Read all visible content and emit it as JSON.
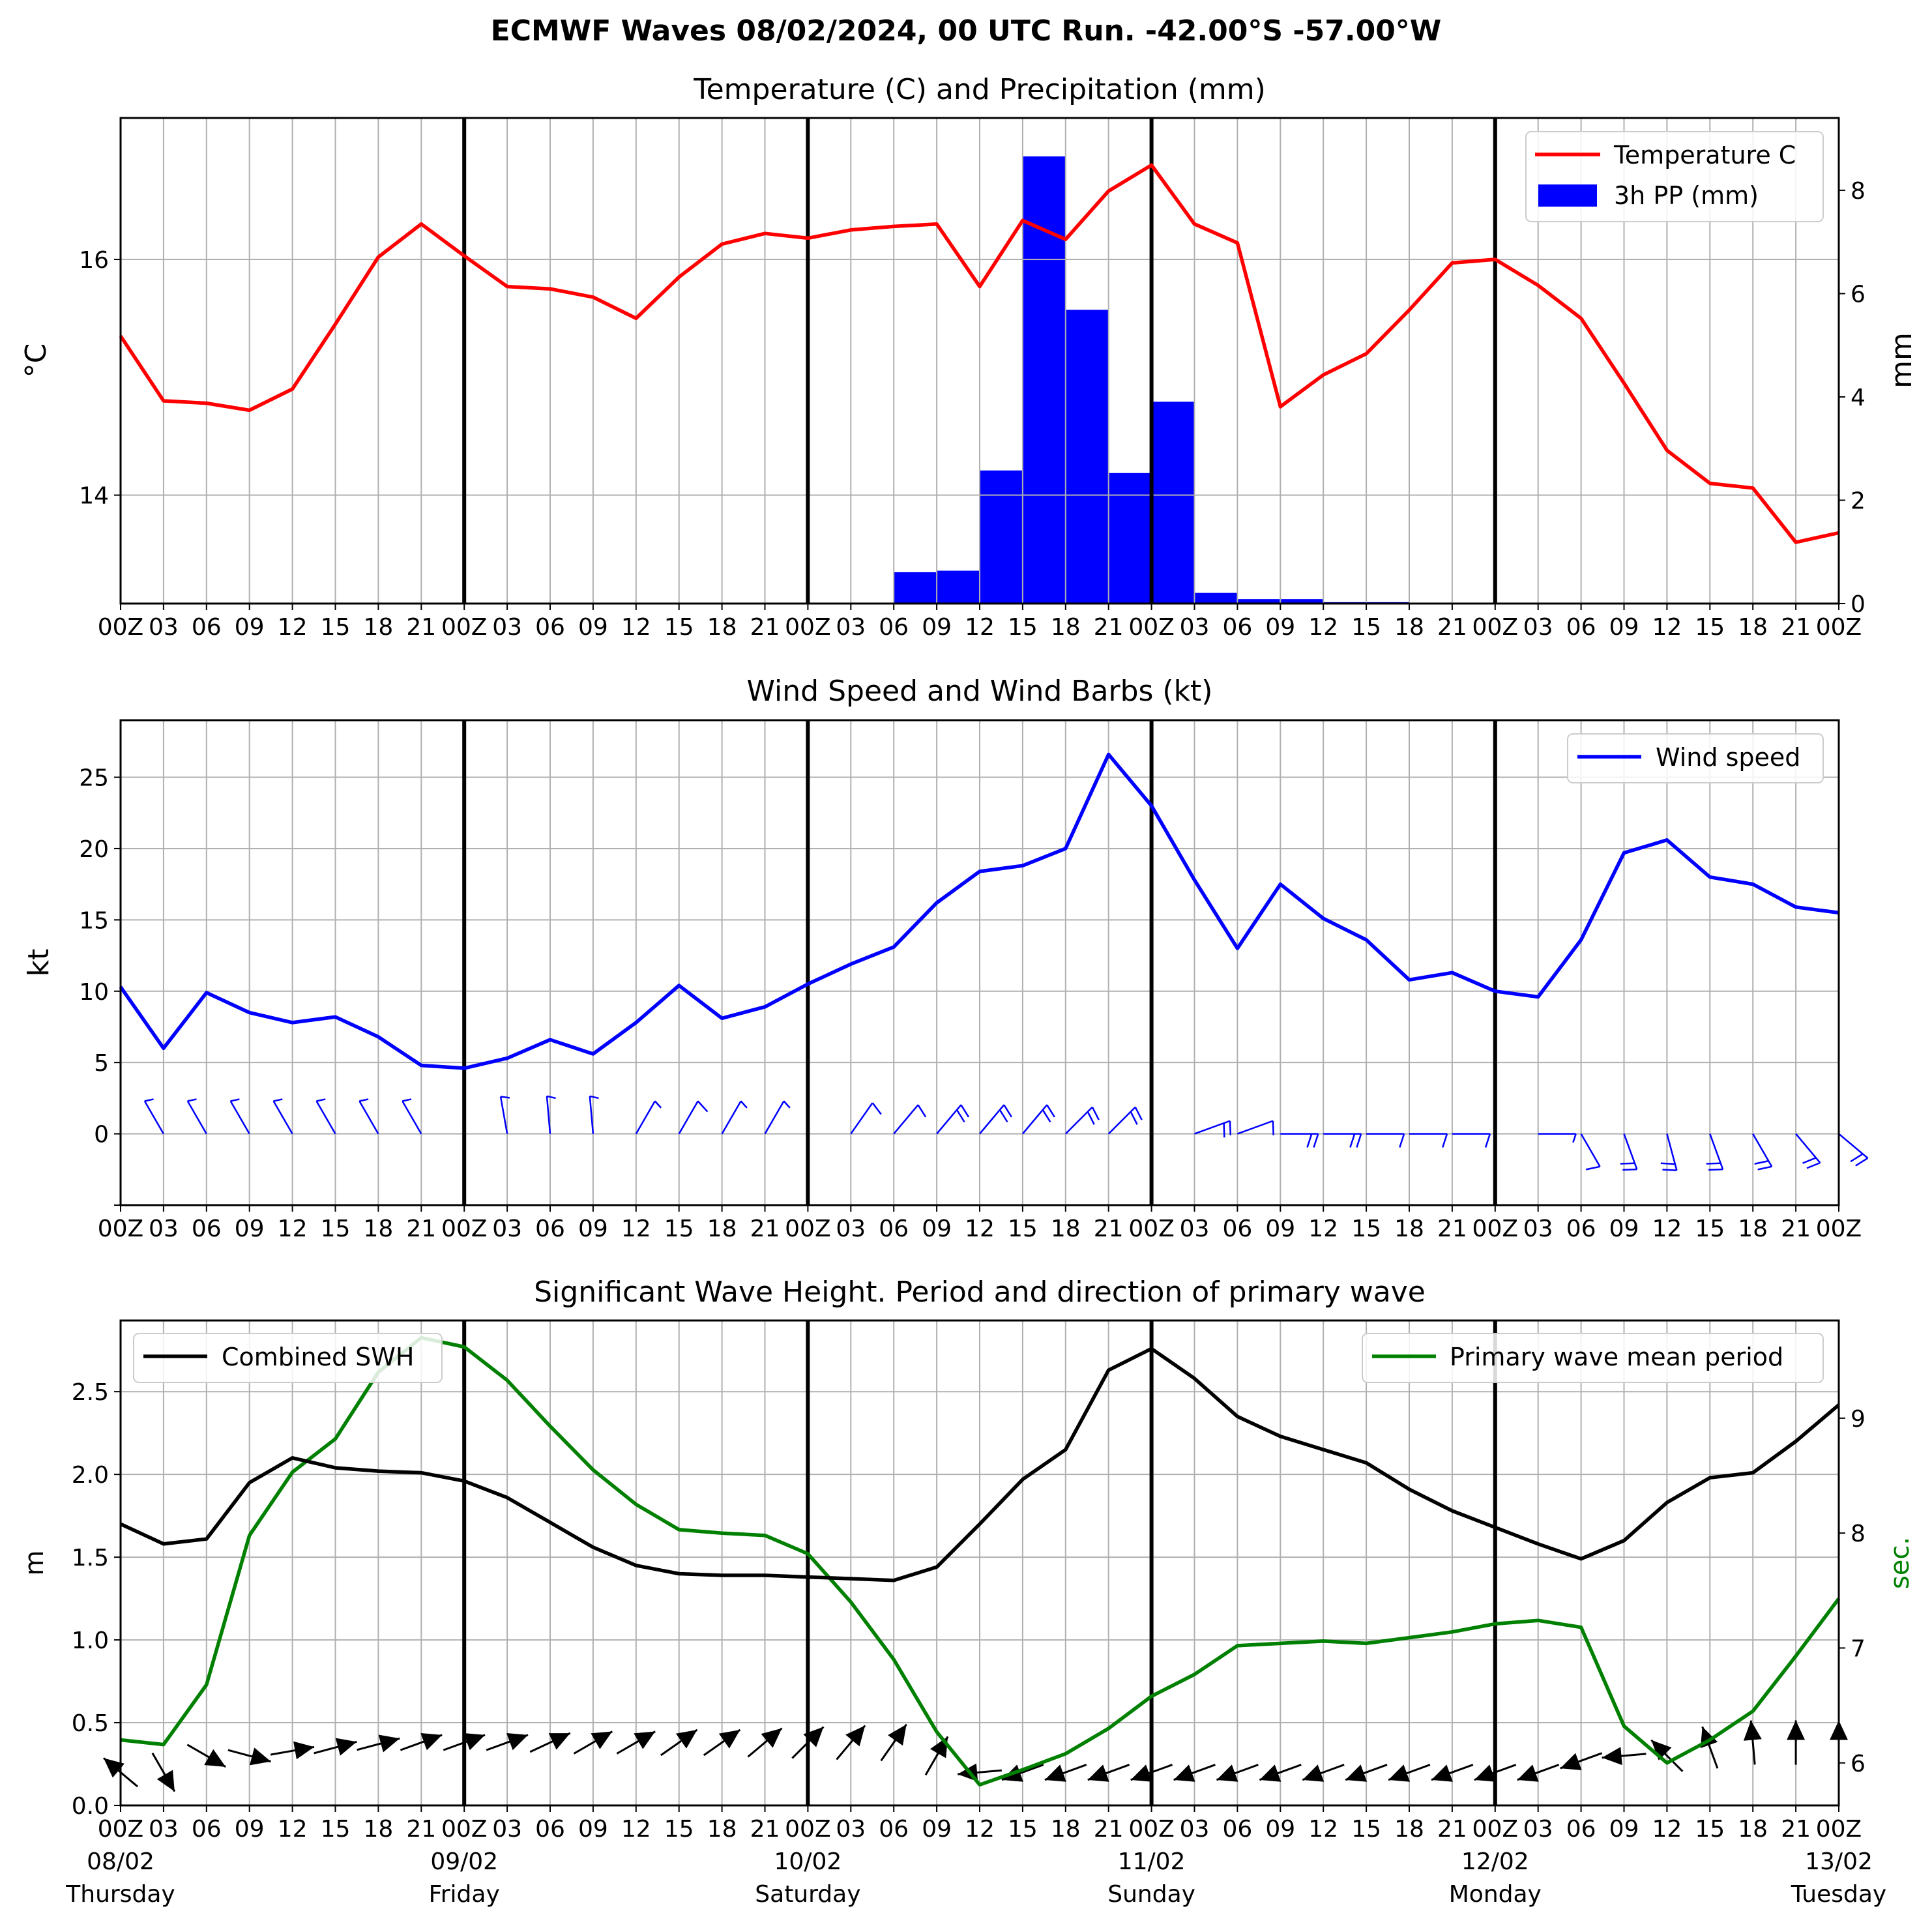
{
  "title": "ECMWF Waves 08/02/2024, 00 UTC Run. -42.00°S -57.00°W",
  "x_tick_labels": [
    "00Z",
    "03",
    "06",
    "09",
    "12",
    "15",
    "18",
    "21",
    "00Z",
    "03",
    "06",
    "09",
    "12",
    "15",
    "18",
    "21",
    "00Z",
    "03",
    "06",
    "09",
    "12",
    "15",
    "18",
    "21",
    "00Z",
    "03",
    "06",
    "09",
    "12",
    "15",
    "18",
    "21",
    "00Z",
    "03",
    "06",
    "09",
    "12",
    "15",
    "18",
    "21",
    "00Z"
  ],
  "day_labels": [
    {
      "date": "08/02",
      "weekday": "Thursday"
    },
    {
      "date": "09/02",
      "weekday": "Friday"
    },
    {
      "date": "10/02",
      "weekday": "Saturday"
    },
    {
      "date": "11/02",
      "weekday": "Sunday"
    },
    {
      "date": "12/02",
      "weekday": "Monday"
    },
    {
      "date": "13/02",
      "weekday": "Tuesday"
    }
  ],
  "colors": {
    "temperature": "#ff0000",
    "precip": "#0000ff",
    "wind": "#0000ff",
    "swh": "#000000",
    "period": "#008000",
    "grid": "#b0b0b0"
  },
  "chart_data": [
    {
      "type": "line",
      "title": "Temperature (C) and Precipitation (mm)",
      "xlabel": "",
      "ylabel": "$^\\circ$C",
      "ylabel_right": "mm",
      "time_step_hours": 3,
      "ylim": [
        13.08,
        17.2
      ],
      "yticks": [
        14,
        16
      ],
      "ylim_right": [
        0,
        9.4
      ],
      "yticks_right": [
        0,
        2,
        4,
        6,
        8
      ],
      "legend": "top-right",
      "series": [
        {
          "name": "Temperature C",
          "type": "line",
          "values": [
            15.35,
            14.8,
            14.78,
            14.72,
            14.9,
            15.45,
            16.02,
            16.3,
            16.03,
            15.77,
            15.75,
            15.68,
            15.5,
            15.85,
            16.13,
            16.22,
            16.18,
            16.25,
            16.28,
            16.3,
            15.77,
            16.33,
            16.17,
            16.58,
            16.8,
            16.3,
            16.14,
            14.75,
            15.02,
            15.2,
            15.57,
            15.97,
            16.0,
            15.78,
            15.5,
            14.95,
            14.38,
            14.1,
            14.06,
            13.6,
            13.68
          ]
        },
        {
          "name": "3h PP (mm)",
          "type": "bar",
          "values": [
            0,
            0,
            0,
            0,
            0,
            0,
            0,
            0,
            0,
            0,
            0,
            0,
            0,
            0,
            0,
            0,
            0,
            0,
            0.6,
            0.63,
            2.57,
            8.65,
            5.68,
            2.52,
            3.9,
            0.2,
            0.08,
            0.08,
            0.02,
            0.02,
            0,
            0,
            0,
            0,
            0,
            0,
            0,
            0,
            0,
            0
          ]
        }
      ]
    },
    {
      "type": "line",
      "title": "Wind Speed and Wind Barbs (kt)",
      "xlabel": "",
      "ylabel": "kt",
      "time_step_hours": 3,
      "ylim": [
        -5,
        29
      ],
      "yticks": [
        0,
        5,
        10,
        15,
        20,
        25
      ],
      "legend": "top-right",
      "series": [
        {
          "name": "Wind speed",
          "values": [
            10.3,
            6.0,
            9.9,
            8.5,
            7.8,
            8.2,
            6.8,
            4.8,
            4.6,
            5.3,
            6.6,
            5.6,
            7.8,
            10.4,
            8.1,
            8.9,
            10.5,
            11.9,
            13.1,
            16.2,
            18.4,
            18.8,
            20.0,
            26.6,
            23.0,
            17.8,
            13.0,
            17.5,
            15.1,
            13.6,
            10.8,
            11.3,
            10.0,
            9.6,
            13.6,
            19.7,
            20.6,
            18.0,
            17.5,
            15.9,
            15.5
          ]
        }
      ]
    },
    {
      "type": "line",
      "title": "Significant Wave Height. Period and direction of primary wave",
      "xlabel": "",
      "ylabel": "m",
      "ylabel_right": "sec.",
      "time_step_hours": 3,
      "ylim": [
        0,
        2.93
      ],
      "yticks": [
        0.0,
        0.5,
        1.0,
        1.5,
        2.0,
        2.5
      ],
      "ylim_right": [
        5.63,
        9.85
      ],
      "yticks_right": [
        6,
        7,
        8,
        9
      ],
      "series": [
        {
          "name": "Combined SWH",
          "legend": "top-left",
          "values": [
            1.7,
            1.58,
            1.61,
            1.95,
            2.1,
            2.04,
            2.02,
            2.01,
            1.96,
            1.86,
            1.71,
            1.56,
            1.45,
            1.4,
            1.39,
            1.39,
            1.38,
            1.37,
            1.36,
            1.44,
            1.7,
            1.97,
            2.15,
            2.63,
            2.76,
            2.58,
            2.35,
            2.23,
            2.15,
            2.07,
            1.91,
            1.78,
            1.68,
            1.58,
            1.49,
            1.6,
            1.83,
            1.98,
            2.01,
            2.2,
            2.42
          ]
        },
        {
          "name": "Primary wave mean period",
          "legend": "top-right",
          "values": [
            6.2,
            6.16,
            6.68,
            7.98,
            8.53,
            8.82,
            9.4,
            9.7,
            9.62,
            9.33,
            8.93,
            8.55,
            8.25,
            8.03,
            8.0,
            7.98,
            7.82,
            7.4,
            6.9,
            6.27,
            5.81,
            5.94,
            6.08,
            6.3,
            6.58,
            6.77,
            7.02,
            7.04,
            7.06,
            7.04,
            7.09,
            7.14,
            7.21,
            7.24,
            7.18,
            6.32,
            6.0,
            6.2,
            6.45,
            6.93,
            7.43
          ]
        }
      ]
    }
  ]
}
